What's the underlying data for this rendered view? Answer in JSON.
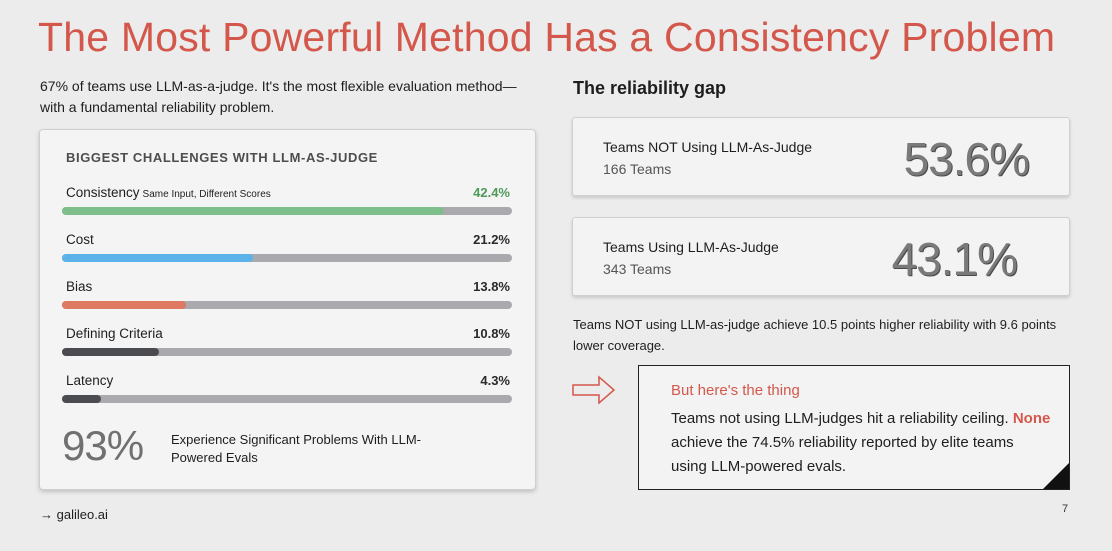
{
  "title": "The Most Powerful Method Has a Consistency Problem",
  "intro": "67% of teams use LLM-as-a-judge. It's the most flexible evaluation method—with a fundamental reliability problem.",
  "challenges": {
    "heading": "BIGGEST CHALLENGES WITH LLM-AS-JUDGE",
    "items": [
      {
        "label": "Consistency",
        "sublabel": "Same Input, Different Scores",
        "pct": "42.4%",
        "value": 42.4,
        "color": "#7dbe8a"
      },
      {
        "label": "Cost",
        "sublabel": "",
        "pct": "21.2%",
        "value": 21.2,
        "color": "#5cb3ea"
      },
      {
        "label": "Bias",
        "sublabel": "",
        "pct": "13.8%",
        "value": 13.8,
        "color": "#de7962"
      },
      {
        "label": "Defining Criteria",
        "sublabel": "",
        "pct": "10.8%",
        "value": 10.8,
        "color": "#4b4b52"
      },
      {
        "label": "Latency",
        "sublabel": "",
        "pct": "4.3%",
        "value": 4.3,
        "color": "#4b4b52"
      }
    ],
    "scale_max": 50,
    "big_stat": "93%",
    "big_stat_text": "Experience Significant Problems With LLM-Powered Evals"
  },
  "reliability": {
    "heading": "The reliability gap",
    "cards": [
      {
        "label": "Teams NOT Using LLM-As-Judge",
        "teams": "166 Teams",
        "value": "53.6%"
      },
      {
        "label": "Teams Using LLM-As-Judge",
        "teams": "343 Teams",
        "value": "43.1%"
      }
    ],
    "summary": "Teams NOT using LLM-as-judge achieve 10.5 points higher reliability with 9.6 points lower coverage."
  },
  "callout": {
    "heading": "But here's the thing",
    "body_before": "Teams not using LLM-judges hit a reliability ceiling. ",
    "highlight": "None",
    "body_after": " achieve the 74.5% reliability reported by elite teams using LLM-powered evals."
  },
  "footer": {
    "link": "→ galileo.ai",
    "page": "7"
  },
  "colors": {
    "accent": "#d4574b",
    "track": "#aaaaae"
  }
}
